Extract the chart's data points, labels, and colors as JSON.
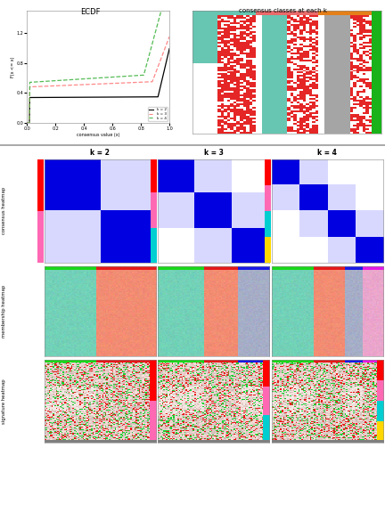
{
  "title_ecdf": "ECDF",
  "title_consensus_classes": "consensus classes at each k",
  "col_titles": [
    "k = 2",
    "k = 3",
    "k = 4"
  ],
  "row_labels": [
    "consensus heatmap",
    "membership heatmap",
    "signature heatmap"
  ],
  "xlabel_ecdf": "consensus value (x)",
  "ylabel_ecdf": "F(x <= x)",
  "legend_k2_color": "#000000",
  "legend_k3_color": "#FF8888",
  "legend_k4_color": "#55BB55",
  "blue": [
    0.0,
    0.0,
    0.88
  ],
  "white": [
    1.0,
    1.0,
    1.0
  ],
  "light_blue": [
    0.75,
    0.75,
    1.0
  ],
  "teal": [
    0.45,
    0.82,
    0.72
  ],
  "salmon": [
    0.95,
    0.55,
    0.45
  ],
  "slate": [
    0.65,
    0.68,
    0.78
  ],
  "pink": [
    0.92,
    0.65,
    0.8
  ],
  "side_bar_colors": [
    "#FF0000",
    "#FF69B4",
    "#00CED1",
    "#FFD700",
    "#32CD32",
    "#FF6600"
  ]
}
